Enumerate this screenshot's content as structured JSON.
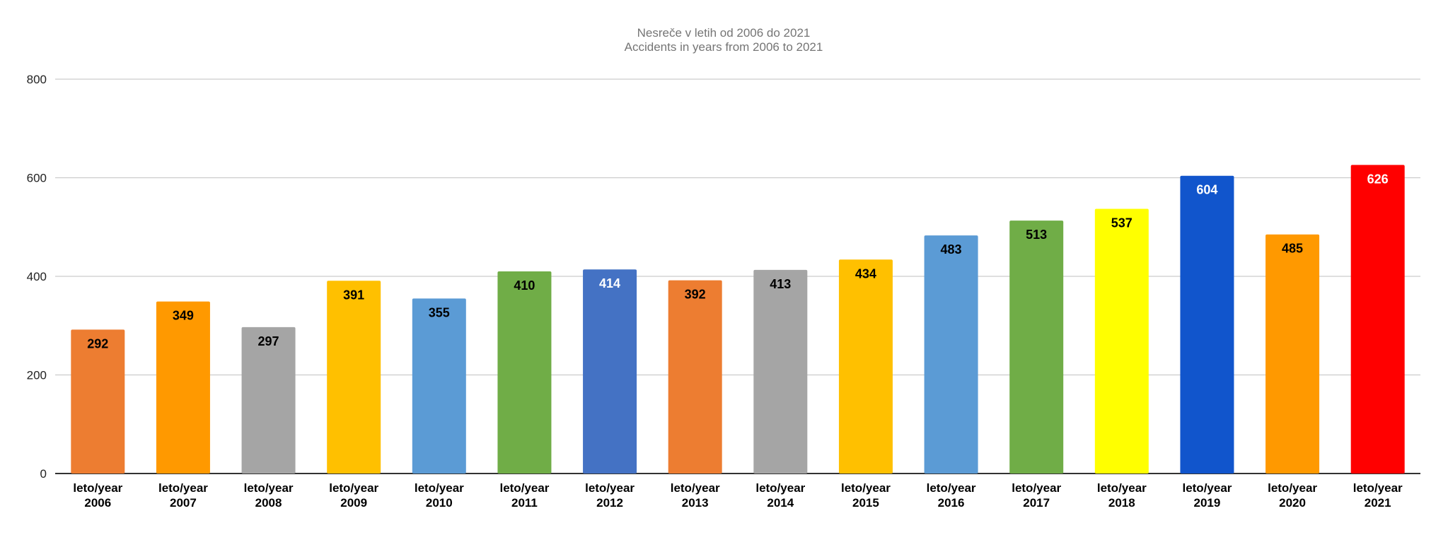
{
  "chart_data": {
    "type": "bar",
    "title": "Nesreče v letih od 2006 do 2021",
    "subtitle": "Accidents in years from 2006 to 2021",
    "xlabel": "",
    "ylabel": "",
    "ylim": [
      0,
      800
    ],
    "yticks": [
      0,
      200,
      400,
      600,
      800
    ],
    "grid": true,
    "categories": [
      [
        "leto/year",
        "2006"
      ],
      [
        "leto/year",
        "2007"
      ],
      [
        "leto/year",
        "2008"
      ],
      [
        "leto/year",
        "2009"
      ],
      [
        "leto/year",
        "2010"
      ],
      [
        "leto/year",
        "2011"
      ],
      [
        "leto/year",
        "2012"
      ],
      [
        "leto/year",
        "2013"
      ],
      [
        "leto/year",
        "2014"
      ],
      [
        "leto/year",
        "2015"
      ],
      [
        "leto/year",
        "2016"
      ],
      [
        "leto/year",
        "2017"
      ],
      [
        "leto/year",
        "2018"
      ],
      [
        "leto/year",
        "2019"
      ],
      [
        "leto/year",
        "2020"
      ],
      [
        "leto/year",
        "2021"
      ]
    ],
    "values": [
      292,
      349,
      297,
      391,
      355,
      410,
      414,
      392,
      413,
      434,
      483,
      513,
      537,
      604,
      485,
      626
    ],
    "colors": [
      "#ED7D31",
      "#FF9900",
      "#A5A5A5",
      "#FFC000",
      "#5B9BD5",
      "#70AD47",
      "#4472C4",
      "#ED7D31",
      "#A5A5A5",
      "#FFC000",
      "#5B9BD5",
      "#70AD47",
      "#FFFF00",
      "#1155CC",
      "#FF9900",
      "#FF0000"
    ],
    "label_colors": [
      "#000000",
      "#000000",
      "#000000",
      "#000000",
      "#000000",
      "#000000",
      "#FFFFFF",
      "#000000",
      "#000000",
      "#000000",
      "#000000",
      "#000000",
      "#000000",
      "#FFFFFF",
      "#000000",
      "#FFFFFF"
    ]
  }
}
